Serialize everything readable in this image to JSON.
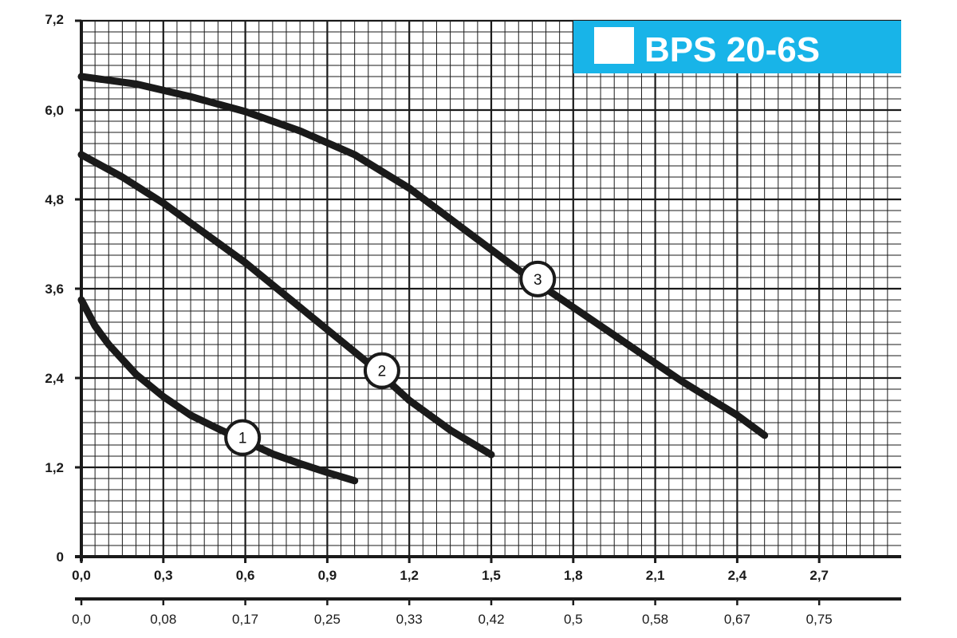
{
  "chart_data": {
    "type": "line",
    "title": "BPS 20-6S",
    "title_background": "#18b4e8",
    "title_text_color": "#ffffff",
    "line_color": "#1a1a1a",
    "grid": true,
    "grid_color": "#1a1a1a",
    "xlim": [
      0,
      3.0
    ],
    "ylim": [
      0,
      7.2
    ],
    "x_ticks": [
      "0,0",
      "0,3",
      "0,6",
      "0,9",
      "1,2",
      "1,5",
      "1,8",
      "2,1",
      "2,4",
      "2,7"
    ],
    "x_tick_values": [
      0,
      0.3,
      0.6,
      0.9,
      1.2,
      1.5,
      1.8,
      2.1,
      2.4,
      2.7
    ],
    "y_ticks": [
      "0",
      "1,2",
      "2,4",
      "3,6",
      "4,8",
      "6,0",
      "7,2"
    ],
    "y_tick_values": [
      0,
      1.2,
      2.4,
      3.6,
      4.8,
      6.0,
      7.2
    ],
    "secondary_x_ticks": [
      "0,0",
      "0,08",
      "0,17",
      "0,25",
      "0,33",
      "0,42",
      "0,5",
      "0,58",
      "0,67",
      "0,75"
    ],
    "series": [
      {
        "name": "1",
        "x": [
          0.0,
          0.05,
          0.1,
          0.2,
          0.3,
          0.4,
          0.5,
          0.6,
          0.7,
          0.8,
          0.9,
          1.0
        ],
        "y": [
          3.45,
          3.1,
          2.85,
          2.45,
          2.15,
          1.9,
          1.72,
          1.55,
          1.38,
          1.25,
          1.13,
          1.02
        ]
      },
      {
        "name": "2",
        "x": [
          0.0,
          0.15,
          0.3,
          0.45,
          0.6,
          0.75,
          0.9,
          1.05,
          1.2,
          1.35,
          1.5
        ],
        "y": [
          5.4,
          5.1,
          4.75,
          4.35,
          3.95,
          3.5,
          3.05,
          2.6,
          2.1,
          1.7,
          1.37
        ]
      },
      {
        "name": "3",
        "x": [
          0.0,
          0.2,
          0.4,
          0.6,
          0.8,
          1.0,
          1.2,
          1.4,
          1.6,
          1.8,
          2.0,
          2.2,
          2.4,
          2.5
        ],
        "y": [
          6.45,
          6.35,
          6.18,
          5.98,
          5.72,
          5.4,
          4.95,
          4.4,
          3.85,
          3.35,
          2.85,
          2.35,
          1.9,
          1.63
        ]
      }
    ],
    "curve_label_positions": [
      {
        "name": "1",
        "x": 0.59,
        "y": 1.6
      },
      {
        "name": "2",
        "x": 1.1,
        "y": 2.5
      },
      {
        "name": "3",
        "x": 1.67,
        "y": 3.73
      }
    ]
  }
}
